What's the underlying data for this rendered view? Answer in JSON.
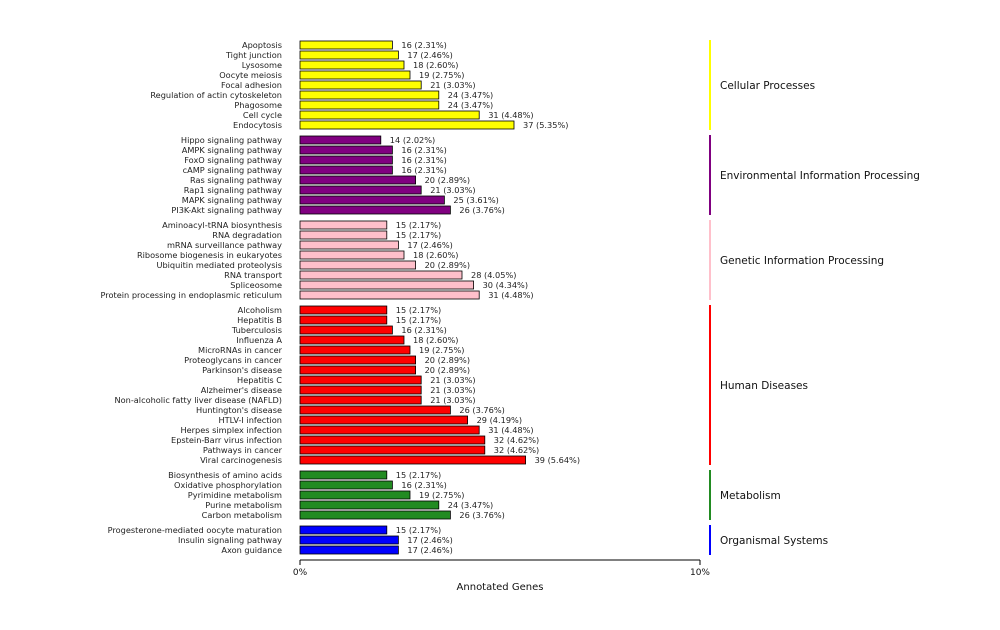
{
  "chart_data": {
    "type": "bar",
    "orientation": "horizontal",
    "xlabel": "Annotated Genes",
    "xlim": [
      0,
      10
    ],
    "x_ticks": [
      "0%",
      "10%"
    ],
    "grid": false,
    "groups": [
      {
        "name": "Cellular Processes",
        "color": "#ffff00",
        "items": [
          {
            "label": "Apoptosis",
            "value": 16,
            "pct": "16 (2.31%)"
          },
          {
            "label": "Tight junction",
            "value": 17,
            "pct": "17 (2.46%)"
          },
          {
            "label": "Lysosome",
            "value": 18,
            "pct": "18 (2.60%)"
          },
          {
            "label": "Oocyte meiosis",
            "value": 19,
            "pct": "19 (2.75%)"
          },
          {
            "label": "Focal adhesion",
            "value": 21,
            "pct": "21 (3.03%)"
          },
          {
            "label": "Regulation of actin cytoskeleton",
            "value": 24,
            "pct": "24 (3.47%)"
          },
          {
            "label": "Phagosome",
            "value": 24,
            "pct": "24 (3.47%)"
          },
          {
            "label": "Cell cycle",
            "value": 31,
            "pct": "31 (4.48%)"
          },
          {
            "label": "Endocytosis",
            "value": 37,
            "pct": "37 (5.35%)"
          }
        ]
      },
      {
        "name": "Environmental Information Processing",
        "color": "#800080",
        "items": [
          {
            "label": "Hippo signaling pathway",
            "value": 14,
            "pct": "14 (2.02%)"
          },
          {
            "label": "AMPK signaling pathway",
            "value": 16,
            "pct": "16 (2.31%)"
          },
          {
            "label": "FoxO signaling pathway",
            "value": 16,
            "pct": "16 (2.31%)"
          },
          {
            "label": "cAMP signaling pathway",
            "value": 16,
            "pct": "16 (2.31%)"
          },
          {
            "label": "Ras signaling pathway",
            "value": 20,
            "pct": "20 (2.89%)"
          },
          {
            "label": "Rap1 signaling pathway",
            "value": 21,
            "pct": "21 (3.03%)"
          },
          {
            "label": "MAPK signaling pathway",
            "value": 25,
            "pct": "25 (3.61%)"
          },
          {
            "label": "PI3K-Akt signaling pathway",
            "value": 26,
            "pct": "26 (3.76%)"
          }
        ]
      },
      {
        "name": "Genetic Information Processing",
        "color": "#ffc0cb",
        "items": [
          {
            "label": "Aminoacyl-tRNA biosynthesis",
            "value": 15,
            "pct": "15 (2.17%)"
          },
          {
            "label": "RNA degradation",
            "value": 15,
            "pct": "15 (2.17%)"
          },
          {
            "label": "mRNA surveillance pathway",
            "value": 17,
            "pct": "17 (2.46%)"
          },
          {
            "label": "Ribosome biogenesis in eukaryotes",
            "value": 18,
            "pct": "18 (2.60%)"
          },
          {
            "label": "Ubiquitin mediated proteolysis",
            "value": 20,
            "pct": "20 (2.89%)"
          },
          {
            "label": "RNA transport",
            "value": 28,
            "pct": "28 (4.05%)"
          },
          {
            "label": "Spliceosome",
            "value": 30,
            "pct": "30 (4.34%)"
          },
          {
            "label": "Protein processing in endoplasmic reticulum",
            "value": 31,
            "pct": "31 (4.48%)"
          }
        ]
      },
      {
        "name": "Human Diseases",
        "color": "#ff0000",
        "items": [
          {
            "label": "Alcoholism",
            "value": 15,
            "pct": "15 (2.17%)"
          },
          {
            "label": "Hepatitis B",
            "value": 15,
            "pct": "15 (2.17%)"
          },
          {
            "label": "Tuberculosis",
            "value": 16,
            "pct": "16 (2.31%)"
          },
          {
            "label": "Influenza A",
            "value": 18,
            "pct": "18 (2.60%)"
          },
          {
            "label": "MicroRNAs in cancer",
            "value": 19,
            "pct": "19 (2.75%)"
          },
          {
            "label": "Proteoglycans in cancer",
            "value": 20,
            "pct": "20 (2.89%)"
          },
          {
            "label": "Parkinson's disease",
            "value": 20,
            "pct": "20 (2.89%)"
          },
          {
            "label": "Hepatitis C",
            "value": 21,
            "pct": "21 (3.03%)"
          },
          {
            "label": "Alzheimer's disease",
            "value": 21,
            "pct": "21 (3.03%)"
          },
          {
            "label": "Non-alcoholic fatty liver disease (NAFLD)",
            "value": 21,
            "pct": "21 (3.03%)"
          },
          {
            "label": "Huntington's disease",
            "value": 26,
            "pct": "26 (3.76%)"
          },
          {
            "label": "HTLV-I infection",
            "value": 29,
            "pct": "29 (4.19%)"
          },
          {
            "label": "Herpes simplex infection",
            "value": 31,
            "pct": "31 (4.48%)"
          },
          {
            "label": "Epstein-Barr virus infection",
            "value": 32,
            "pct": "32 (4.62%)"
          },
          {
            "label": "Pathways in cancer",
            "value": 32,
            "pct": "32 (4.62%)"
          },
          {
            "label": "Viral carcinogenesis",
            "value": 39,
            "pct": "39 (5.64%)"
          }
        ]
      },
      {
        "name": "Metabolism",
        "color": "#228b22",
        "items": [
          {
            "label": "Biosynthesis of amino acids",
            "value": 15,
            "pct": "15 (2.17%)"
          },
          {
            "label": "Oxidative phosphorylation",
            "value": 16,
            "pct": "16 (2.31%)"
          },
          {
            "label": "Pyrimidine metabolism",
            "value": 19,
            "pct": "19 (2.75%)"
          },
          {
            "label": "Purine metabolism",
            "value": 24,
            "pct": "24 (3.47%)"
          },
          {
            "label": "Carbon metabolism",
            "value": 26,
            "pct": "26 (3.76%)"
          }
        ]
      },
      {
        "name": "Organismal Systems",
        "color": "#0000ff",
        "items": [
          {
            "label": "Progesterone-mediated oocyte maturation",
            "value": 15,
            "pct": "15 (2.17%)"
          },
          {
            "label": "Insulin signaling pathway",
            "value": 17,
            "pct": "17 (2.46%)"
          },
          {
            "label": "Axon guidance",
            "value": 17,
            "pct": "17 (2.46%)"
          }
        ]
      }
    ]
  }
}
